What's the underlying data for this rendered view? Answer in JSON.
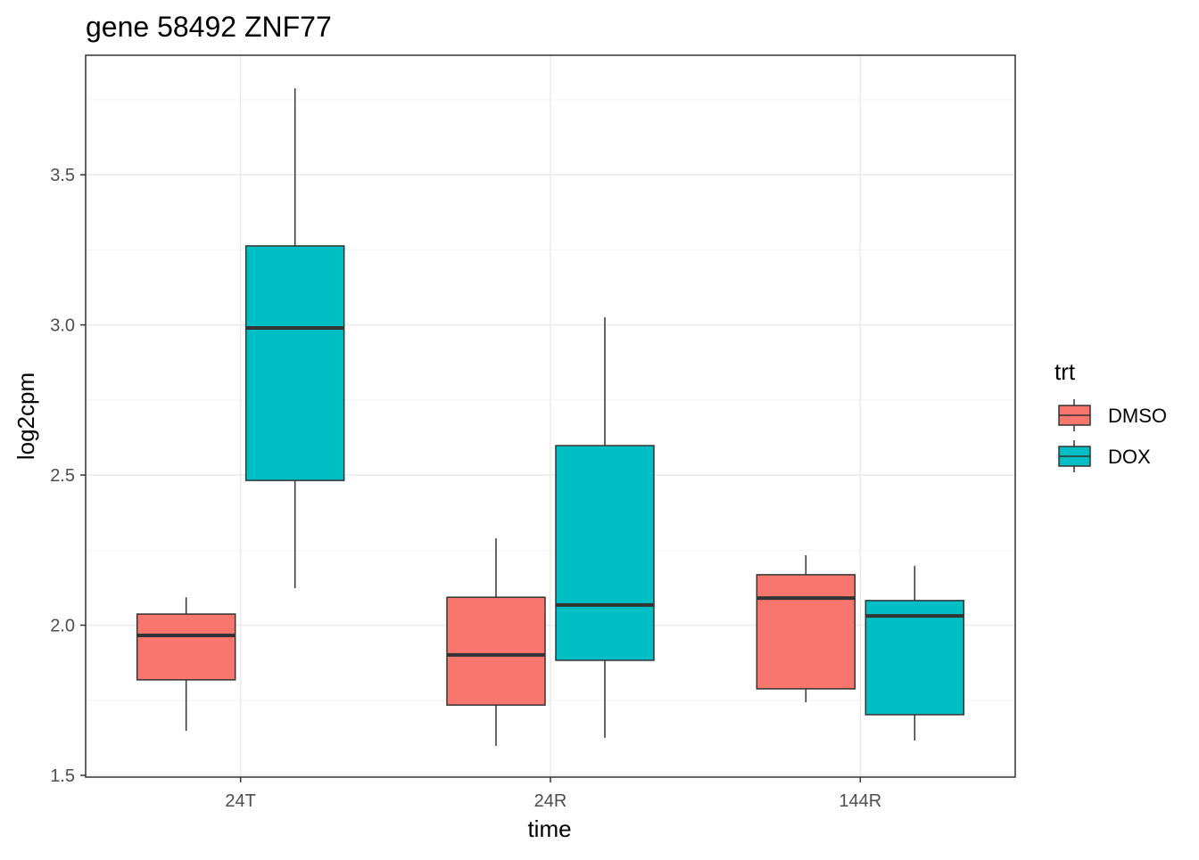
{
  "chart_data": {
    "type": "boxplot",
    "title": "gene 58492 ZNF77",
    "xlabel": "time",
    "ylabel": "log2cpm",
    "categories": [
      "24T",
      "24R",
      "144R"
    ],
    "yticks": [
      1.5,
      2.0,
      2.5,
      3.0,
      3.5
    ],
    "ytick_labels": [
      "1.5",
      "2.0",
      "2.5",
      "3.0",
      "3.5"
    ],
    "ylim": [
      1.494,
      3.898
    ],
    "grid": true,
    "legend": {
      "title": "trt",
      "position": "right",
      "entries": [
        "DMSO",
        "DOX"
      ]
    },
    "series": [
      {
        "name": "DMSO",
        "color": "#F8766D",
        "boxes": [
          {
            "category": "24T",
            "min": 1.648,
            "q1": 1.818,
            "median": 1.966,
            "q3": 2.037,
            "max": 2.093
          },
          {
            "category": "24R",
            "min": 1.598,
            "q1": 1.734,
            "median": 1.901,
            "q3": 2.093,
            "max": 2.289
          },
          {
            "category": "144R",
            "min": 1.743,
            "q1": 1.788,
            "median": 2.09,
            "q3": 2.168,
            "max": 2.233
          }
        ]
      },
      {
        "name": "DOX",
        "color": "#00BFC4",
        "boxes": [
          {
            "category": "24T",
            "min": 2.123,
            "q1": 2.482,
            "median": 2.99,
            "q3": 3.263,
            "max": 3.788
          },
          {
            "category": "24R",
            "min": 1.625,
            "q1": 1.883,
            "median": 2.067,
            "q3": 2.598,
            "max": 3.025
          },
          {
            "category": "144R",
            "min": 1.616,
            "q1": 1.702,
            "median": 2.031,
            "q3": 2.082,
            "max": 2.197
          }
        ]
      }
    ]
  }
}
